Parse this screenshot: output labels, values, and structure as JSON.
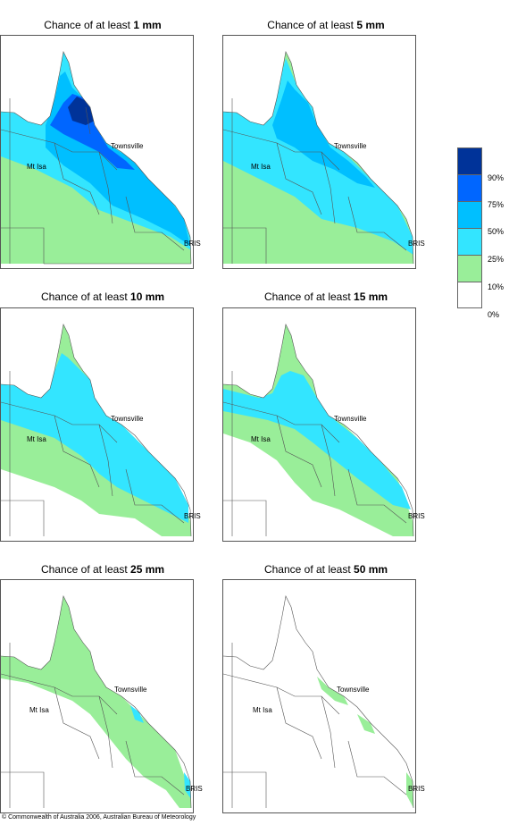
{
  "panels": [
    {
      "prefix": "Chance of at least ",
      "amount": "1 mm"
    },
    {
      "prefix": "Chance of at least ",
      "amount": "5 mm"
    },
    {
      "prefix": "Chance of at least ",
      "amount": "10 mm"
    },
    {
      "prefix": "Chance of at least ",
      "amount": "15 mm"
    },
    {
      "prefix": "Chance of at least ",
      "amount": "25 mm"
    },
    {
      "prefix": "Chance of at least ",
      "amount": "50 mm"
    }
  ],
  "places": {
    "townsville": "Townsville",
    "mt_isa": "Mt Isa",
    "bris": "BRIS"
  },
  "legend": {
    "colors": [
      "#003399",
      "#0066ff",
      "#00bfff",
      "#33e5ff",
      "#99ee99",
      "#ffffff"
    ],
    "ticks": [
      "90%",
      "75%",
      "50%",
      "25%",
      "10%",
      "0%"
    ]
  },
  "footer": "© Commonwealth of Australia 2006, Australian Bureau of Meteorology"
}
